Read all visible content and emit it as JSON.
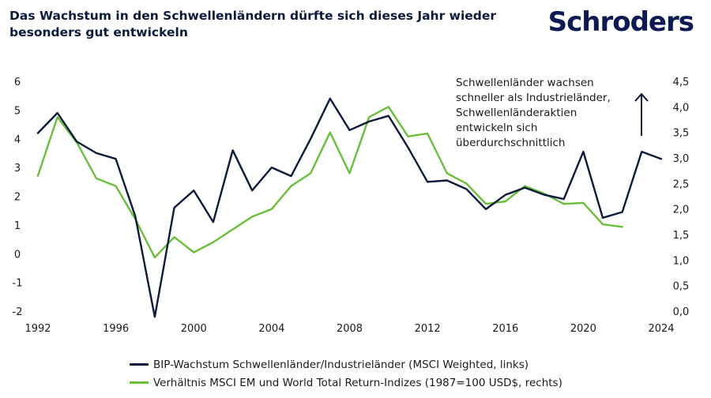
{
  "title": "Das Wachstum in den Schwellenländern dürfte sich dieses Jahr wieder besonders gut entwickeln",
  "brand": "Schroders",
  "annotation": [
    "Schwellenländer wachsen",
    "schneller als Industrieländer,",
    "Schwellenländeraktien",
    "entwickeln sich",
    "überdurchschnittlich"
  ],
  "chart_data": {
    "type": "line",
    "title": "Das Wachstum in den Schwellenländern dürfte sich dieses Jahr wieder besonders gut entwickeln",
    "x_ticks": [
      "1992",
      "1996",
      "2000",
      "2004",
      "2008",
      "2012",
      "2016",
      "2020",
      "2024"
    ],
    "x_range": [
      1992,
      2024
    ],
    "y_left_ticks": [
      "6",
      "5",
      "4",
      "3",
      "2",
      "1",
      "0",
      "-1",
      "-2"
    ],
    "y_left_range": [
      -2,
      6
    ],
    "y_right_ticks": [
      "4,5",
      "4,0",
      "3,5",
      "3,0",
      "2,5",
      "2,0",
      "1,5",
      "1,0",
      "0,5",
      "0,0"
    ],
    "y_right_range": [
      0,
      4.5
    ],
    "grid": false,
    "legend_position": "bottom",
    "series": [
      {
        "name": "BIP-Wachstum Schwellenländer/Industrieländer (MSCI Weighted, links)",
        "axis": "left",
        "color": "#0b1a3d",
        "x": [
          1992,
          1993,
          1994,
          1995,
          1996,
          1997,
          1998,
          1999,
          2000,
          2001,
          2002,
          2003,
          2004,
          2005,
          2006,
          2007,
          2008,
          2009,
          2010,
          2011,
          2012,
          2013,
          2014,
          2015,
          2016,
          2017,
          2018,
          2019,
          2020,
          2021,
          2022,
          2023,
          2024
        ],
        "values": [
          4.2,
          4.9,
          3.9,
          3.5,
          3.3,
          1.3,
          -2.2,
          1.6,
          2.2,
          1.1,
          3.6,
          2.2,
          3.0,
          2.7,
          4.0,
          5.4,
          4.3,
          4.6,
          4.8,
          3.7,
          2.5,
          2.55,
          2.25,
          1.55,
          2.05,
          2.3,
          2.05,
          1.9,
          3.55,
          1.25,
          1.45,
          3.55,
          3.3
        ]
      },
      {
        "name": "Verhältnis MSCI EM und World Total Return-Indizes (1987=100 USD$, rechts)",
        "axis": "right",
        "color": "#6abf3a",
        "x": [
          1992,
          1993,
          1994,
          1995,
          1996,
          1997,
          1998,
          1999,
          2000,
          2001,
          2002,
          2003,
          2004,
          2005,
          2006,
          2007,
          2008,
          2009,
          2010,
          2011,
          2012,
          2013,
          2014,
          2015,
          2016,
          2017,
          2018,
          2019,
          2020,
          2021,
          2022
        ],
        "values": [
          2.65,
          3.8,
          3.3,
          2.6,
          2.45,
          1.8,
          1.05,
          1.45,
          1.15,
          1.35,
          1.6,
          1.85,
          2.0,
          2.45,
          2.7,
          3.5,
          2.7,
          3.8,
          4.0,
          3.42,
          3.48,
          2.7,
          2.5,
          2.1,
          2.15,
          2.45,
          2.3,
          2.1,
          2.12,
          1.7,
          1.65
        ]
      }
    ]
  }
}
